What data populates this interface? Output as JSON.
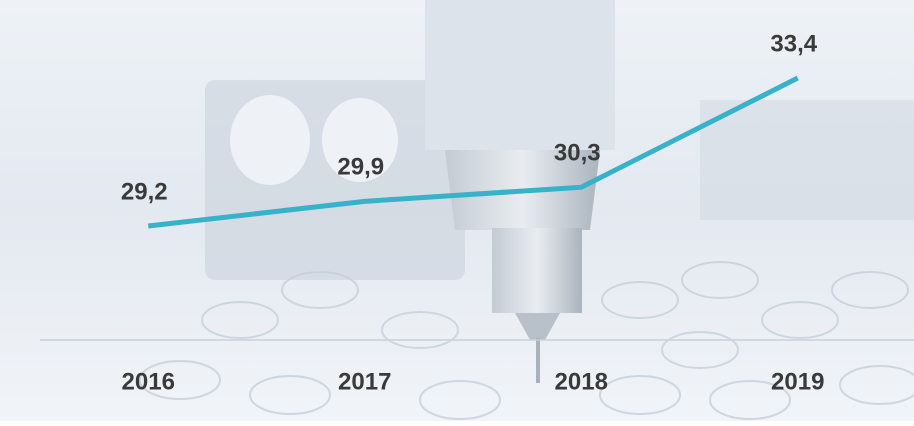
{
  "chart_data": {
    "type": "line",
    "categories": [
      "2016",
      "2017",
      "2018",
      "2019"
    ],
    "values": [
      29.2,
      29.9,
      30.3,
      33.4
    ],
    "value_labels": [
      "29,2",
      "29,9",
      "30,3",
      "33,4"
    ],
    "color": "#38b2c9"
  }
}
